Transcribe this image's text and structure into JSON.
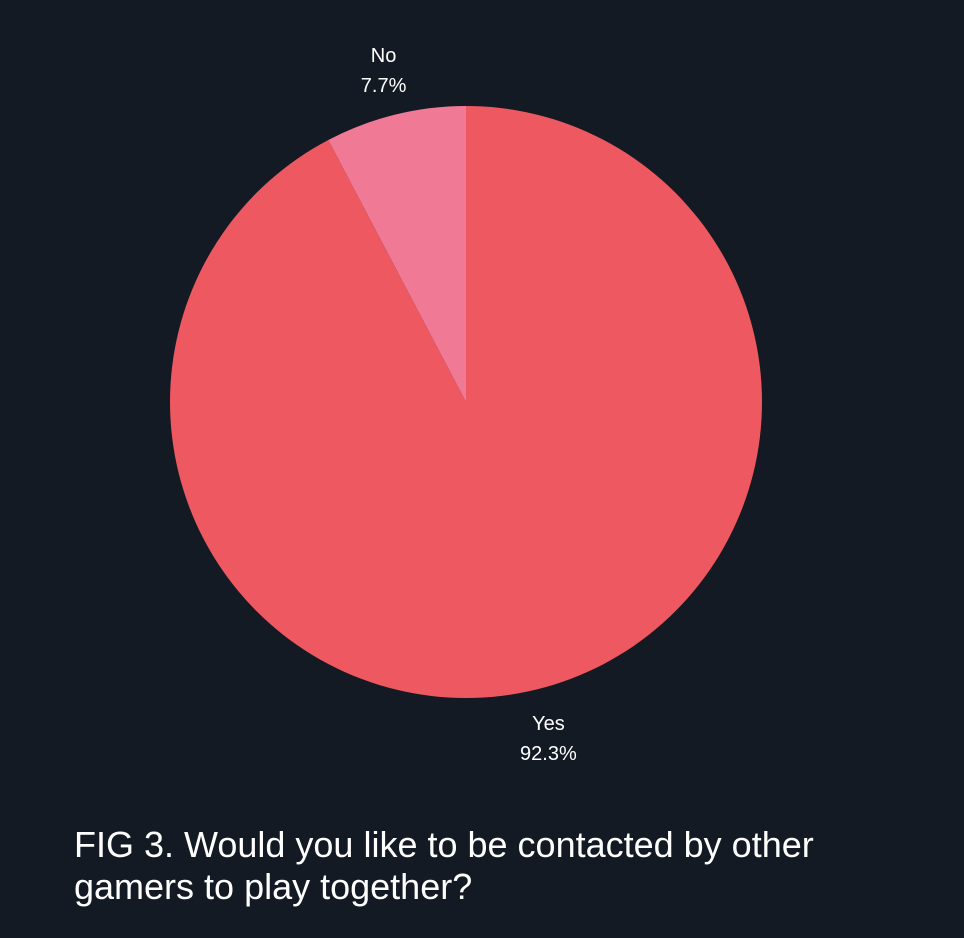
{
  "caption": "FIG 3. Would you like to be contacted by other gamers to play together?",
  "chart_data": {
    "type": "pie",
    "title": "",
    "slices": [
      {
        "label": "Yes",
        "value": 92.3,
        "value_label": "92.3%",
        "color": "#ee5860"
      },
      {
        "label": "No",
        "value": 7.7,
        "value_label": "7.7%",
        "color": "#f07a96"
      }
    ],
    "start": "12 o'clock",
    "direction": "clockwise",
    "legend": "none",
    "background": "#131a23"
  }
}
